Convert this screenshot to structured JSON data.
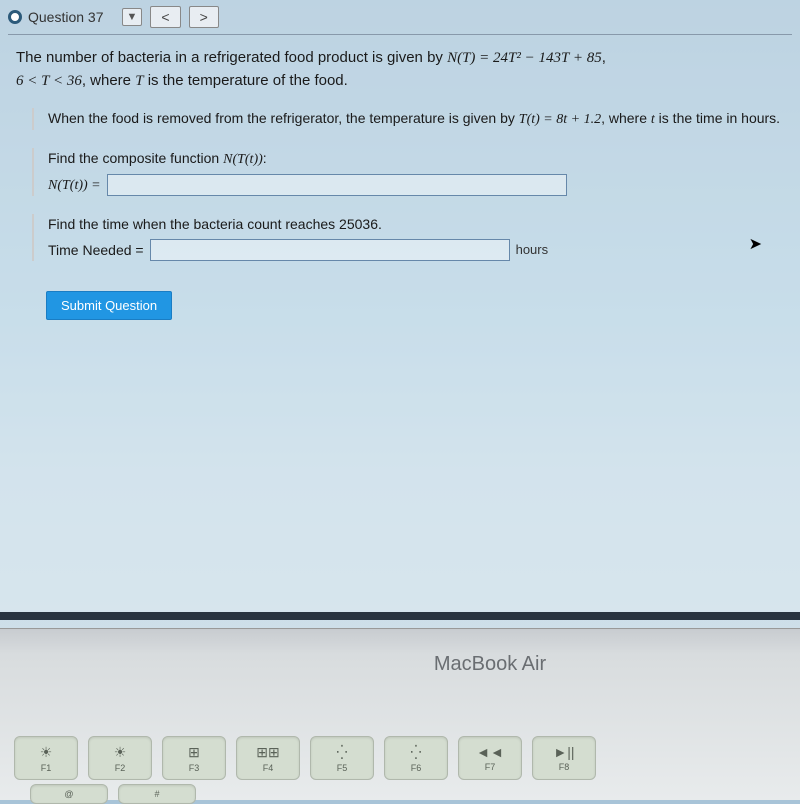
{
  "toolbar": {
    "question_label": "Question 37",
    "dropdown_icon": "▼",
    "prev_icon": "<",
    "next_icon": ">"
  },
  "problem": {
    "main_text_1": "The number of bacteria in a refrigerated food product is given by ",
    "main_formula_1": "N(T) = 24T² − 143T + 85",
    "main_text_2": ", ",
    "main_domain": "6 < T < 36",
    "main_text_3": ", where ",
    "main_var_T": "T",
    "main_text_4": " is the temperature of the food.",
    "sub1_text_1": "When the food is removed from the refrigerator, the temperature is given by ",
    "sub1_formula": "T(t) = 8t + 1.2",
    "sub1_text_2": ", where ",
    "sub1_var_t": "t",
    "sub1_text_3": " is the time in hours.",
    "find1_text": "Find the composite function ",
    "find1_formula": "N(T(t))",
    "find1_colon": ":",
    "find1_label": "N(T(t)) = ",
    "find2_text": "Find the time when the bacteria count reaches 25036.",
    "find2_label": "Time Needed = ",
    "find2_unit": "hours",
    "submit_label": "Submit Question"
  },
  "laptop": {
    "brand": "MacBook Air"
  },
  "keys": {
    "f1": "F1",
    "f2": "F2",
    "f3": "F3",
    "f4": "F4",
    "f5": "F5",
    "f6": "F6",
    "f7": "F7",
    "f8": "F8",
    "brightness_down": "☀",
    "brightness_up": "☀",
    "expose": "⊞",
    "launchpad": "⊞⊞",
    "kb_down": "⁛",
    "kb_up": "⁛",
    "rewind": "◄◄",
    "play": "►||",
    "at": "@",
    "hash": "#"
  },
  "colors": {
    "button_bg": "#2196e3",
    "screen_bg_top": "#a8c4d8",
    "body_bg": "#e8ebec",
    "key_bg": "#d4ddd0",
    "text": "#1a1a1a"
  }
}
